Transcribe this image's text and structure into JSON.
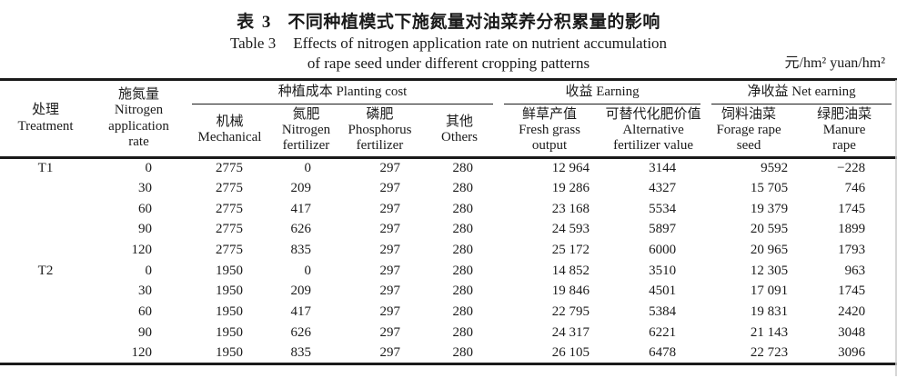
{
  "page": {
    "title_zh_label": "表 3",
    "title_zh_text": "不同种植模式下施氮量对油菜养分积累量的影响",
    "title_en_label": "Table 3",
    "title_en_line1": "Effects of nitrogen application rate on nutrient accumulation",
    "title_en_line2": "of rape seed under different cropping patterns",
    "unit": "元/hm² yuan/hm²"
  },
  "table": {
    "groups": {
      "planting_cost": "种植成本 Planting cost",
      "earning": "收益 Earning",
      "net_earning": "净收益 Net earning"
    },
    "headers": {
      "treatment": "处理\nTreatment",
      "n_rate": "施氮量\nNitrogen\napplication\nrate",
      "mechanical": "机械\nMechanical",
      "n_fertilizer": "氮肥\nNitrogen\nfertilizer",
      "p_fertilizer": "磷肥\nPhosphorus\nfertilizer",
      "others": "其他\nOthers",
      "fresh_grass": "鲜草产值\nFresh grass\noutput",
      "alt_fertilizer": "可替代化肥价值\nAlternative\nfertilizer value",
      "forage_rape": "饲料油菜\nForage rape\nseed",
      "manure_rape": "绿肥油菜\nManure\nrape"
    },
    "rows": [
      [
        "T1",
        "0",
        "2775",
        "0",
        "297",
        "280",
        "12 964",
        "3144",
        "9592",
        "−228"
      ],
      [
        "",
        "30",
        "2775",
        "209",
        "297",
        "280",
        "19 286",
        "4327",
        "15 705",
        "746"
      ],
      [
        "",
        "60",
        "2775",
        "417",
        "297",
        "280",
        "23 168",
        "5534",
        "19 379",
        "1745"
      ],
      [
        "",
        "90",
        "2775",
        "626",
        "297",
        "280",
        "24 593",
        "5897",
        "20 595",
        "1899"
      ],
      [
        "",
        "120",
        "2775",
        "835",
        "297",
        "280",
        "25 172",
        "6000",
        "20 965",
        "1793"
      ],
      [
        "T2",
        "0",
        "1950",
        "0",
        "297",
        "280",
        "14 852",
        "3510",
        "12 305",
        "963"
      ],
      [
        "",
        "30",
        "1950",
        "209",
        "297",
        "280",
        "19 846",
        "4501",
        "17 091",
        "1745"
      ],
      [
        "",
        "60",
        "1950",
        "417",
        "297",
        "280",
        "22 795",
        "5384",
        "19 831",
        "2420"
      ],
      [
        "",
        "90",
        "1950",
        "626",
        "297",
        "280",
        "24 317",
        "6221",
        "21 143",
        "3048"
      ],
      [
        "",
        "120",
        "1950",
        "835",
        "297",
        "280",
        "26 105",
        "6478",
        "22 723",
        "3096"
      ]
    ]
  }
}
